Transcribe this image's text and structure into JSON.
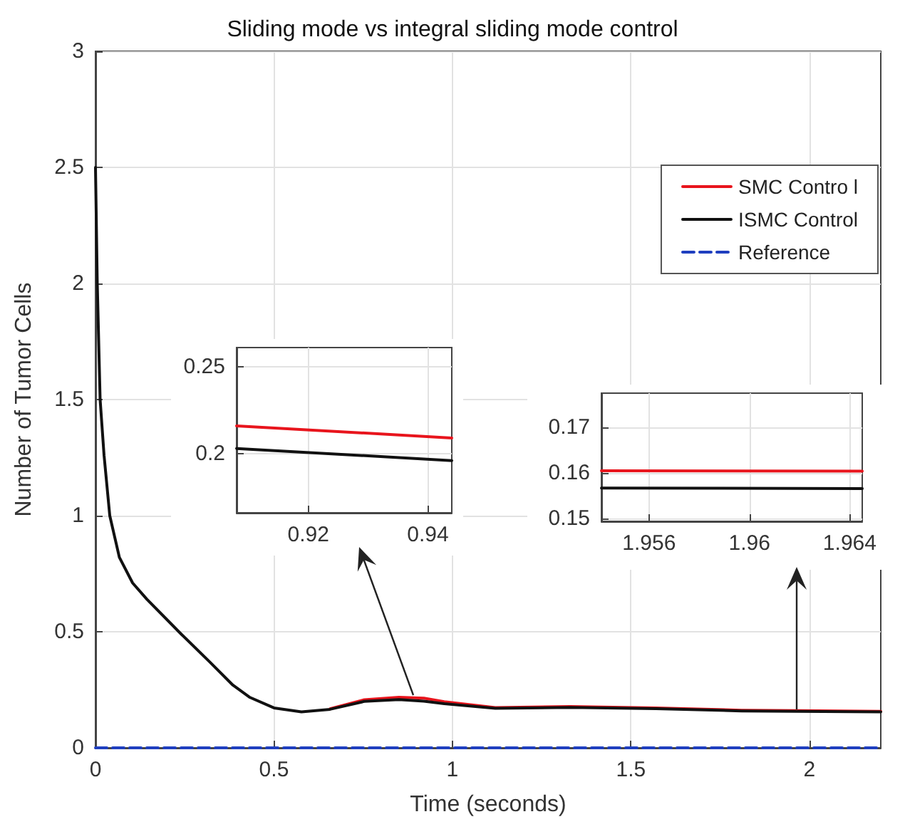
{
  "chart_data": [
    {
      "type": "line",
      "title": "Sliding mode vs integral sliding mode control",
      "xlabel": "Time (seconds)",
      "ylabel": "Number of Tumor Cells",
      "x": [
        0,
        0.005,
        0.013,
        0.024,
        0.04,
        0.067,
        0.104,
        0.144,
        0.24,
        0.32,
        0.385,
        0.433,
        0.5,
        0.577,
        0.657,
        0.753,
        0.85,
        0.92,
        0.977,
        1.12,
        1.33,
        1.57,
        1.81,
        1.96,
        2.2
      ],
      "series": [
        {
          "name": "SMC Contro l",
          "color": "#e8141c",
          "values": [
            null,
            null,
            null,
            null,
            null,
            null,
            null,
            null,
            null,
            null,
            null,
            null,
            null,
            null,
            0.168,
            0.207,
            0.218,
            0.214,
            0.199,
            0.173,
            0.178,
            0.172,
            0.162,
            0.16,
            0.157
          ]
        },
        {
          "name": "ISMC Control",
          "color": "#111111",
          "values": [
            2.5,
            2.0,
            1.5,
            1.26,
            1.0,
            0.82,
            0.71,
            0.64,
            0.49,
            0.37,
            0.27,
            0.217,
            0.172,
            0.155,
            0.166,
            0.2,
            0.208,
            0.201,
            0.19,
            0.17,
            0.174,
            0.169,
            0.159,
            0.157,
            0.155
          ]
        },
        {
          "name": "Reference",
          "color": "#1f3fbf",
          "line_style": "dashed",
          "x": [
            0,
            2.2
          ],
          "values": [
            0,
            0
          ]
        }
      ],
      "xlim": [
        0,
        2.2
      ],
      "ylim": [
        0,
        3
      ],
      "xticks": [
        0,
        0.5,
        1,
        1.5,
        2
      ],
      "yticks": [
        0,
        0.5,
        1,
        1.5,
        2,
        2.5,
        3
      ],
      "grid": true,
      "legend": "top right",
      "marker": "none"
    },
    {
      "type": "line",
      "x": [
        0.908,
        0.944
      ],
      "series": [
        {
          "color": "#e8141c",
          "values": [
            0.216,
            0.209
          ]
        },
        {
          "color": "#111111",
          "values": [
            0.203,
            0.196
          ]
        }
      ],
      "xlim": [
        0.908,
        0.944
      ],
      "ylim": [
        0.166,
        0.261
      ],
      "xticks": [
        0.92,
        0.94
      ],
      "yticks": [
        0.2,
        0.25
      ],
      "grid": true,
      "marker": "none"
    },
    {
      "type": "line",
      "x": [
        1.9541,
        1.9645
      ],
      "series": [
        {
          "color": "#e8141c",
          "values": [
            0.1605,
            0.1604
          ]
        },
        {
          "color": "#111111",
          "values": [
            0.1567,
            0.1566
          ]
        }
      ],
      "xlim": [
        1.9541,
        1.9645
      ],
      "ylim": [
        0.1494,
        0.1775
      ],
      "xticks": [
        1.956,
        1.96,
        1.964
      ],
      "yticks": [
        0.15,
        0.16,
        0.17
      ],
      "grid": true,
      "marker": "none"
    }
  ]
}
